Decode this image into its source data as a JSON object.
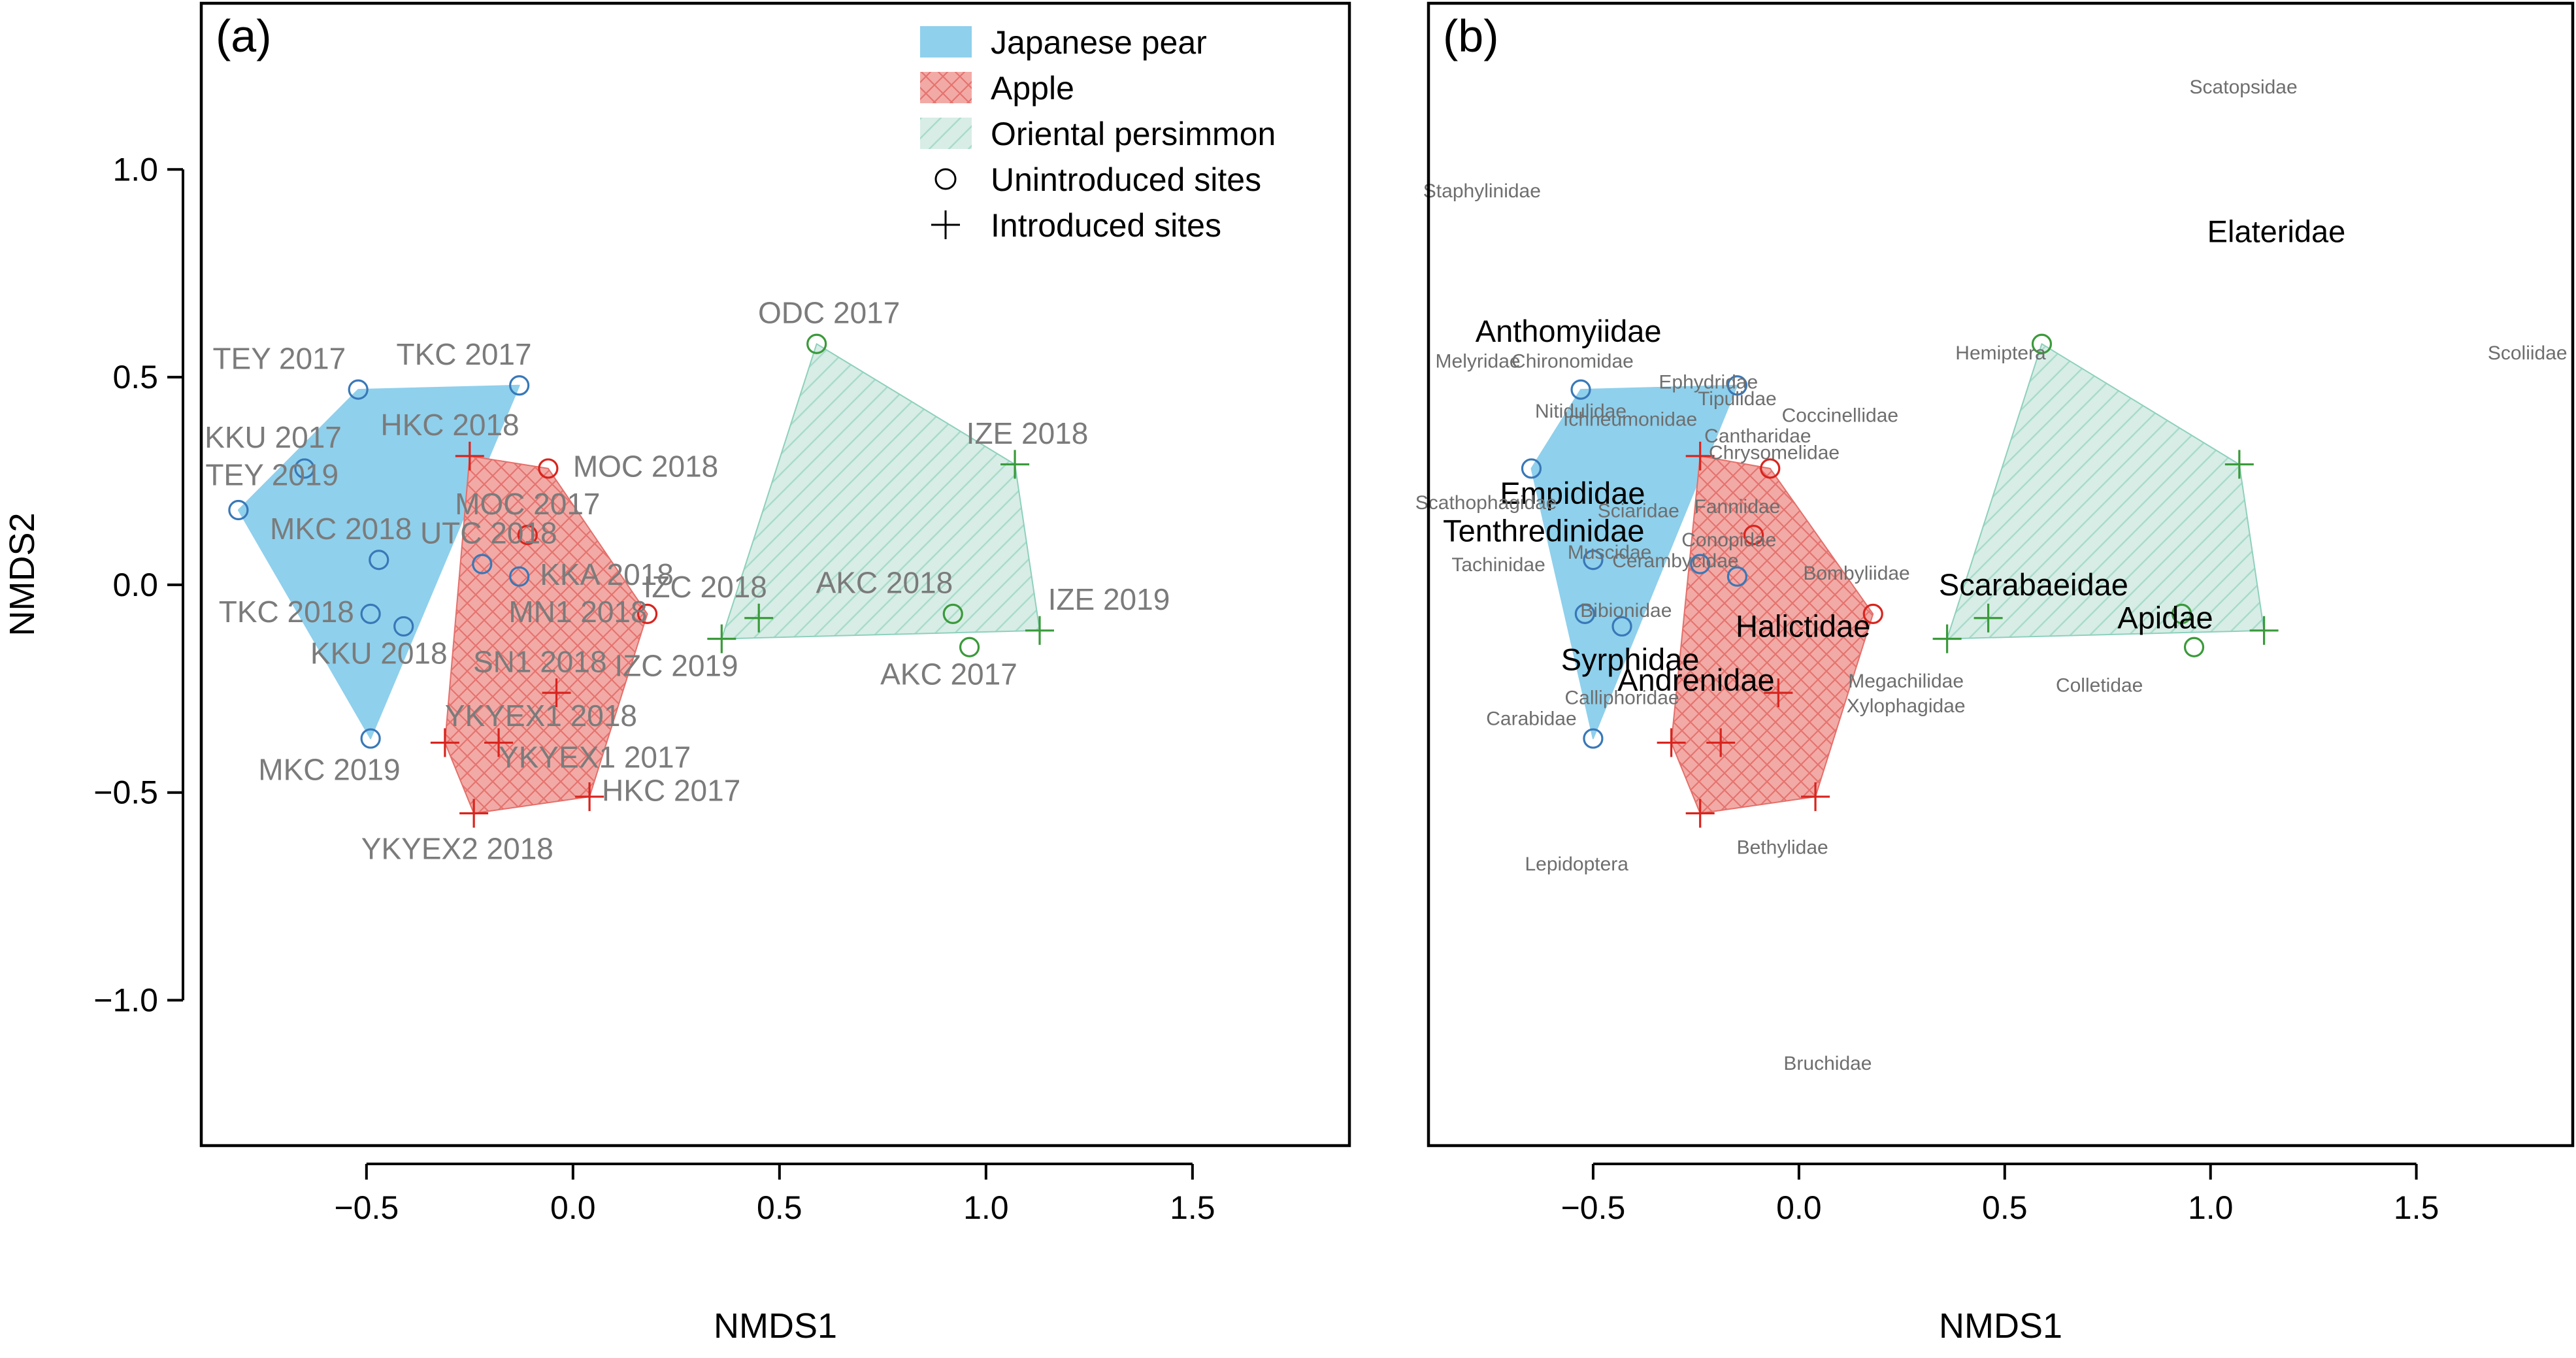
{
  "chart_data": [
    {
      "type": "scatter",
      "panel_label": "(a)",
      "xlabel": "NMDS1",
      "ylabel": "NMDS2",
      "xlim": [
        -0.9,
        1.88
      ],
      "ylim": [
        -1.35,
        1.4
      ],
      "xticks": [
        -0.5,
        0.0,
        0.5,
        1.0,
        1.5
      ],
      "xtick_labels": [
        "−0.5",
        "0.0",
        "0.5",
        "1.0",
        "1.5"
      ],
      "yticks": [
        -1.0,
        -0.5,
        0.0,
        0.5,
        1.0
      ],
      "ytick_labels": [
        "−1.0",
        "−0.5",
        "0.0",
        "0.5",
        "1.0"
      ],
      "legend_position": "top-right",
      "legend": [
        {
          "label": "Japanese pear",
          "kind": "fill",
          "group": "pear"
        },
        {
          "label": "Apple",
          "kind": "fill",
          "group": "apple"
        },
        {
          "label": "Oriental persimmon",
          "kind": "fill",
          "group": "persimmon"
        },
        {
          "label": "Unintroduced sites",
          "kind": "circle"
        },
        {
          "label": "Introduced sites",
          "kind": "plus"
        }
      ],
      "hulls": [
        {
          "group": "pear",
          "points": [
            [
              -0.81,
              0.18
            ],
            [
              -0.52,
              0.47
            ],
            [
              -0.13,
              0.48
            ],
            [
              -0.49,
              -0.37
            ]
          ]
        },
        {
          "group": "apple",
          "points": [
            [
              -0.25,
              0.31
            ],
            [
              -0.06,
              0.28
            ],
            [
              0.18,
              -0.07
            ],
            [
              0.04,
              -0.51
            ],
            [
              -0.24,
              -0.55
            ],
            [
              -0.31,
              -0.38
            ]
          ]
        },
        {
          "group": "persimmon",
          "points": [
            [
              0.59,
              0.58
            ],
            [
              1.07,
              0.29
            ],
            [
              1.13,
              -0.11
            ],
            [
              0.36,
              -0.13
            ]
          ]
        }
      ],
      "points": [
        {
          "label": "TEY 2017",
          "x": -0.52,
          "y": 0.47,
          "group": "pear",
          "marker": "circle",
          "anchor": "end",
          "dx": -0.03,
          "dy": 0.05
        },
        {
          "label": "TKC 2017",
          "x": -0.13,
          "y": 0.48,
          "group": "pear",
          "marker": "circle",
          "anchor": "end",
          "dx": 0.03,
          "dy": 0.05
        },
        {
          "label": "KKU 2017",
          "x": -0.65,
          "y": 0.28,
          "group": "pear",
          "marker": "circle",
          "anchor": "end",
          "dx": 0.09,
          "dy": 0.05
        },
        {
          "label": "TEY 2019",
          "x": -0.81,
          "y": 0.18,
          "group": "pear",
          "marker": "circle",
          "anchor": "start",
          "dx": -0.08,
          "dy": 0.06
        },
        {
          "label": "MKC 2018",
          "x": -0.47,
          "y": 0.06,
          "group": "pear",
          "marker": "circle",
          "anchor": "end",
          "dx": 0.08,
          "dy": 0.05
        },
        {
          "label": "UTC 2018",
          "x": -0.22,
          "y": 0.05,
          "group": "pear",
          "marker": "circle",
          "anchor": "start",
          "dx": -0.15,
          "dy": 0.05
        },
        {
          "label": "KKA 2018",
          "x": -0.13,
          "y": 0.02,
          "group": "pear",
          "marker": "circle",
          "anchor": "start",
          "dx": 0.05,
          "dy": -0.02
        },
        {
          "label": "TKC 2018",
          "x": -0.49,
          "y": -0.07,
          "group": "pear",
          "marker": "circle",
          "anchor": "end",
          "dx": -0.04,
          "dy": -0.02
        },
        {
          "label": "KKU 2018",
          "x": -0.41,
          "y": -0.1,
          "group": "pear",
          "marker": "circle",
          "anchor": "middle",
          "dx": -0.06,
          "dy": -0.09
        },
        {
          "label": "MKC 2019",
          "x": -0.49,
          "y": -0.37,
          "group": "pear",
          "marker": "circle",
          "anchor": "middle",
          "dx": -0.1,
          "dy": -0.1
        },
        {
          "label": "HKC 2018",
          "x": -0.25,
          "y": 0.31,
          "group": "apple",
          "marker": "plus",
          "anchor": "end",
          "dx": 0.12,
          "dy": 0.05
        },
        {
          "label": "MOC 2018",
          "x": -0.06,
          "y": 0.28,
          "group": "apple",
          "marker": "circle",
          "anchor": "start",
          "dx": 0.06,
          "dy": -0.02
        },
        {
          "label": "MOC 2017",
          "x": -0.11,
          "y": 0.12,
          "group": "apple",
          "marker": "circle",
          "anchor": "middle",
          "dx": 0.0,
          "dy": 0.05
        },
        {
          "label": "MN1 2018",
          "x": 0.18,
          "y": -0.07,
          "group": "apple",
          "marker": "circle",
          "anchor": "end",
          "dx": 0.0,
          "dy": -0.02
        },
        {
          "label": "SN1 2018",
          "x": -0.04,
          "y": -0.26,
          "group": "apple",
          "marker": "plus",
          "anchor": "middle",
          "dx": -0.04,
          "dy": 0.05
        },
        {
          "label": "YKYEX1 2018",
          "x": -0.31,
          "y": -0.38,
          "group": "apple",
          "marker": "plus",
          "anchor": "start",
          "dx": 0.0,
          "dy": 0.04
        },
        {
          "label": "YKYEX1 2017",
          "x": -0.18,
          "y": -0.38,
          "group": "apple",
          "marker": "plus",
          "anchor": "start",
          "dx": 0.0,
          "dy": -0.06
        },
        {
          "label": "HKC 2017",
          "x": 0.04,
          "y": -0.51,
          "group": "apple",
          "marker": "plus",
          "anchor": "start",
          "dx": 0.03,
          "dy": -0.01
        },
        {
          "label": "YKYEX2 2018",
          "x": -0.24,
          "y": -0.55,
          "group": "apple",
          "marker": "plus",
          "anchor": "middle",
          "dx": -0.04,
          "dy": -0.11
        },
        {
          "label": "ODC 2017",
          "x": 0.59,
          "y": 0.58,
          "group": "persimmon",
          "marker": "circle",
          "anchor": "middle",
          "dx": 0.03,
          "dy": 0.05
        },
        {
          "label": "IZE 2018",
          "x": 1.07,
          "y": 0.29,
          "group": "persimmon",
          "marker": "plus",
          "anchor": "middle",
          "dx": 0.03,
          "dy": 0.05
        },
        {
          "label": "IZC 2018",
          "x": 0.45,
          "y": -0.08,
          "group": "persimmon",
          "marker": "plus",
          "anchor": "end",
          "dx": 0.02,
          "dy": 0.05
        },
        {
          "label": "IZC 2019",
          "x": 0.36,
          "y": -0.13,
          "group": "persimmon",
          "marker": "plus",
          "anchor": "end",
          "dx": 0.04,
          "dy": -0.09
        },
        {
          "label": "AKC 2018",
          "x": 0.92,
          "y": -0.07,
          "group": "persimmon",
          "marker": "circle",
          "anchor": "end",
          "dx": 0.0,
          "dy": 0.05
        },
        {
          "label": "IZE 2019",
          "x": 1.13,
          "y": -0.11,
          "group": "persimmon",
          "marker": "plus",
          "anchor": "start",
          "dx": 0.02,
          "dy": 0.05
        },
        {
          "label": "AKC 2017",
          "x": 0.96,
          "y": -0.15,
          "group": "persimmon",
          "marker": "circle",
          "anchor": "middle",
          "dx": -0.05,
          "dy": -0.09
        }
      ]
    },
    {
      "type": "scatter",
      "panel_label": "(b)",
      "xlabel": "NMDS1",
      "ylabel": "",
      "xlim": [
        -0.9,
        1.88
      ],
      "ylim": [
        -1.35,
        1.4
      ],
      "xticks": [
        -0.5,
        0.0,
        0.5,
        1.0,
        1.5
      ],
      "xtick_labels": [
        "−0.5",
        "0.0",
        "0.5",
        "1.0",
        "1.5"
      ],
      "hulls": [
        {
          "group": "pear",
          "points": [
            [
              -0.65,
              0.28
            ],
            [
              -0.53,
              0.47
            ],
            [
              -0.15,
              0.48
            ],
            [
              -0.5,
              -0.37
            ]
          ]
        },
        {
          "group": "apple",
          "points": [
            [
              -0.24,
              0.31
            ],
            [
              -0.07,
              0.28
            ],
            [
              0.18,
              -0.07
            ],
            [
              0.04,
              -0.51
            ],
            [
              -0.24,
              -0.55
            ],
            [
              -0.31,
              -0.38
            ]
          ]
        },
        {
          "group": "persimmon",
          "points": [
            [
              0.59,
              0.58
            ],
            [
              1.07,
              0.29
            ],
            [
              1.13,
              -0.11
            ],
            [
              0.36,
              -0.13
            ]
          ]
        }
      ],
      "points": [
        {
          "x": -0.53,
          "y": 0.47,
          "group": "pear",
          "marker": "circle"
        },
        {
          "x": -0.15,
          "y": 0.48,
          "group": "pear",
          "marker": "circle"
        },
        {
          "x": -0.65,
          "y": 0.28,
          "group": "pear",
          "marker": "circle"
        },
        {
          "x": -0.5,
          "y": 0.06,
          "group": "pear",
          "marker": "circle"
        },
        {
          "x": -0.24,
          "y": 0.05,
          "group": "pear",
          "marker": "circle"
        },
        {
          "x": -0.15,
          "y": 0.02,
          "group": "pear",
          "marker": "circle"
        },
        {
          "x": -0.52,
          "y": -0.07,
          "group": "pear",
          "marker": "circle"
        },
        {
          "x": -0.43,
          "y": -0.1,
          "group": "pear",
          "marker": "circle"
        },
        {
          "x": -0.5,
          "y": -0.37,
          "group": "pear",
          "marker": "circle"
        },
        {
          "x": -0.24,
          "y": 0.31,
          "group": "apple",
          "marker": "plus"
        },
        {
          "x": -0.07,
          "y": 0.28,
          "group": "apple",
          "marker": "circle"
        },
        {
          "x": -0.11,
          "y": 0.12,
          "group": "apple",
          "marker": "circle"
        },
        {
          "x": 0.18,
          "y": -0.07,
          "group": "apple",
          "marker": "circle"
        },
        {
          "x": -0.05,
          "y": -0.26,
          "group": "apple",
          "marker": "plus"
        },
        {
          "x": -0.31,
          "y": -0.38,
          "group": "apple",
          "marker": "plus"
        },
        {
          "x": -0.19,
          "y": -0.38,
          "group": "apple",
          "marker": "plus"
        },
        {
          "x": 0.04,
          "y": -0.51,
          "group": "apple",
          "marker": "plus"
        },
        {
          "x": -0.24,
          "y": -0.55,
          "group": "apple",
          "marker": "plus"
        },
        {
          "x": 0.59,
          "y": 0.58,
          "group": "persimmon",
          "marker": "circle"
        },
        {
          "x": 1.07,
          "y": 0.29,
          "group": "persimmon",
          "marker": "plus"
        },
        {
          "x": 0.46,
          "y": -0.08,
          "group": "persimmon",
          "marker": "plus"
        },
        {
          "x": 0.36,
          "y": -0.13,
          "group": "persimmon",
          "marker": "plus"
        },
        {
          "x": 0.93,
          "y": -0.07,
          "group": "persimmon",
          "marker": "circle"
        },
        {
          "x": 1.13,
          "y": -0.11,
          "group": "persimmon",
          "marker": "plus"
        },
        {
          "x": 0.96,
          "y": -0.15,
          "group": "persimmon",
          "marker": "circle"
        }
      ],
      "taxa": [
        {
          "label": "Scatopsidae",
          "x": 1.08,
          "y": 1.2,
          "style": "minor"
        },
        {
          "label": "Staphylinidae",
          "x": -0.77,
          "y": 0.95,
          "style": "minor"
        },
        {
          "label": "Elateridae",
          "x": 1.16,
          "y": 0.85,
          "style": "major"
        },
        {
          "label": "Anthomyiidae",
          "x": -0.56,
          "y": 0.61,
          "style": "major"
        },
        {
          "label": "Melyridae",
          "x": -0.78,
          "y": 0.54,
          "style": "minor"
        },
        {
          "label": "Chironomidae",
          "x": -0.55,
          "y": 0.54,
          "style": "minor"
        },
        {
          "label": "Hemiptera",
          "x": 0.49,
          "y": 0.56,
          "style": "minor"
        },
        {
          "label": "Scoliidae",
          "x": 1.77,
          "y": 0.56,
          "style": "minor"
        },
        {
          "label": "Ephydridae",
          "x": -0.22,
          "y": 0.49,
          "style": "minor"
        },
        {
          "label": "Tipulidae",
          "x": -0.15,
          "y": 0.45,
          "style": "minor"
        },
        {
          "label": "Nitidulidae",
          "x": -0.53,
          "y": 0.42,
          "style": "minor"
        },
        {
          "label": "Ichneumonidae",
          "x": -0.41,
          "y": 0.4,
          "style": "minor"
        },
        {
          "label": "Coccinellidae",
          "x": 0.1,
          "y": 0.41,
          "style": "minor"
        },
        {
          "label": "Cantharidae",
          "x": -0.1,
          "y": 0.36,
          "style": "minor"
        },
        {
          "label": "Chrysomelidae",
          "x": -0.06,
          "y": 0.32,
          "style": "minor"
        },
        {
          "label": "Empididae",
          "x": -0.55,
          "y": 0.22,
          "style": "major"
        },
        {
          "label": "Scathophagidae",
          "x": -0.76,
          "y": 0.2,
          "style": "minor"
        },
        {
          "label": "Fanniidae",
          "x": -0.15,
          "y": 0.19,
          "style": "minor"
        },
        {
          "label": "Sciaridae",
          "x": -0.39,
          "y": 0.18,
          "style": "minor"
        },
        {
          "label": "Tenthredinidae",
          "x": -0.62,
          "y": 0.13,
          "style": "major"
        },
        {
          "label": "Conopidae",
          "x": -0.17,
          "y": 0.11,
          "style": "minor"
        },
        {
          "label": "Muscidae",
          "x": -0.46,
          "y": 0.08,
          "style": "minor"
        },
        {
          "label": "Cerambycidae",
          "x": -0.3,
          "y": 0.06,
          "style": "minor"
        },
        {
          "label": "Tachinidae",
          "x": -0.73,
          "y": 0.05,
          "style": "minor"
        },
        {
          "label": "Bombyliidae",
          "x": 0.14,
          "y": 0.03,
          "style": "minor"
        },
        {
          "label": "Scarabaeidae",
          "x": 0.57,
          "y": 0.0,
          "style": "major"
        },
        {
          "label": "Bibionidae",
          "x": -0.42,
          "y": -0.06,
          "style": "minor"
        },
        {
          "label": "Apidae",
          "x": 0.89,
          "y": -0.08,
          "style": "major"
        },
        {
          "label": "Halictidae",
          "x": 0.01,
          "y": -0.1,
          "style": "major"
        },
        {
          "label": "Syrphidae",
          "x": -0.41,
          "y": -0.18,
          "style": "major"
        },
        {
          "label": "Andrenidae",
          "x": -0.25,
          "y": -0.23,
          "style": "major"
        },
        {
          "label": "Megachilidae",
          "x": 0.26,
          "y": -0.23,
          "style": "minor"
        },
        {
          "label": "Colletidae",
          "x": 0.73,
          "y": -0.24,
          "style": "minor"
        },
        {
          "label": "Calliphoridae",
          "x": -0.43,
          "y": -0.27,
          "style": "minor"
        },
        {
          "label": "Xylophagidae",
          "x": 0.26,
          "y": -0.29,
          "style": "minor"
        },
        {
          "label": "Carabidae",
          "x": -0.65,
          "y": -0.32,
          "style": "minor"
        },
        {
          "label": "Bethylidae",
          "x": -0.04,
          "y": -0.63,
          "style": "minor"
        },
        {
          "label": "Lepidoptera",
          "x": -0.54,
          "y": -0.67,
          "style": "minor"
        },
        {
          "label": "Bruchidae",
          "x": 0.07,
          "y": -1.15,
          "style": "minor"
        }
      ]
    }
  ],
  "colors": {
    "pear": "#8fd0ec",
    "pear_marker": "#3878b8",
    "apple_fill": "#f2aaa6",
    "apple_line": "#e46f6a",
    "apple_marker": "#d9241e",
    "persimmon_fill": "#d7ede6",
    "persimmon_line": "#8ed0bd",
    "persimmon_marker": "#3a9a3a",
    "site_label": "#7b7b7b",
    "minor_taxon": "#6e6e6e",
    "major_taxon": "#000000"
  }
}
